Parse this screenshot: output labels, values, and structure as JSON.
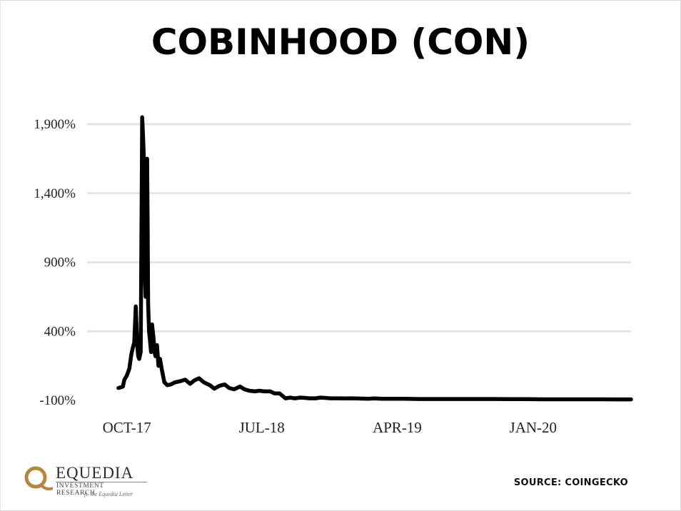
{
  "chart_data": {
    "type": "line",
    "title": "COBINHOOD (CON)",
    "xlabel": "",
    "ylabel": "",
    "x_ticks": [
      "OCT-17",
      "JUL-18",
      "APR-19",
      "JAN-20"
    ],
    "y_ticks": [
      "-100%",
      "400%",
      "900%",
      "1,400%",
      "1,900%"
    ],
    "y_tick_values": [
      -100,
      400,
      900,
      1400,
      1900
    ],
    "ylim": [
      -100,
      2000
    ],
    "grid": true,
    "legend": "none",
    "line_color": "#000000",
    "series": [
      {
        "x": [
          "2017-09-28",
          "2017-10-03",
          "2017-10-07",
          "2017-10-10",
          "2017-10-15",
          "2017-10-20",
          "2017-10-24",
          "2017-10-27",
          "2017-10-30",
          "2017-11-02",
          "2017-11-05",
          "2017-11-07",
          "2017-11-09",
          "2017-11-12",
          "2017-11-15",
          "2017-11-17",
          "2017-11-19",
          "2017-11-20",
          "2017-11-21",
          "2017-11-22",
          "2017-11-23",
          "2017-11-24",
          "2017-11-25",
          "2017-11-26",
          "2017-11-27",
          "2017-11-29",
          "2017-12-01",
          "2017-12-03",
          "2017-12-05",
          "2017-12-08",
          "2017-12-10",
          "2017-12-12",
          "2017-12-15",
          "2017-12-18",
          "2017-12-21",
          "2017-12-25",
          "2017-12-30",
          "2018-01-05",
          "2018-01-12",
          "2018-01-20",
          "2018-02-01",
          "2018-02-10",
          "2018-02-20",
          "2018-03-01",
          "2018-03-10",
          "2018-03-20",
          "2018-04-01",
          "2018-04-10",
          "2018-04-20",
          "2018-05-01",
          "2018-05-10",
          "2018-05-20",
          "2018-06-01",
          "2018-06-10",
          "2018-06-20",
          "2018-07-01",
          "2018-07-10",
          "2018-07-20",
          "2018-08-01",
          "2018-08-10",
          "2018-08-20",
          "2018-09-01",
          "2018-09-10",
          "2018-09-20",
          "2018-10-01",
          "2018-10-10",
          "2018-10-20",
          "2018-11-01",
          "2018-11-10",
          "2018-11-20",
          "2018-12-01",
          "2018-12-15",
          "2019-01-01",
          "2019-01-15",
          "2019-02-01",
          "2019-02-15",
          "2019-03-01",
          "2019-03-15",
          "2019-04-01",
          "2019-05-01",
          "2019-06-01",
          "2019-07-01",
          "2019-08-01",
          "2019-09-01",
          "2019-10-01",
          "2019-11-01",
          "2019-12-01",
          "2020-01-01",
          "2020-02-01",
          "2020-03-01",
          "2020-04-01",
          "2020-05-01",
          "2020-06-01",
          "2020-07-01",
          "2020-08-01",
          "2020-09-01"
        ],
        "values": [
          -10,
          -5,
          0,
          50,
          80,
          130,
          230,
          280,
          320,
          580,
          300,
          220,
          200,
          250,
          1950,
          1800,
          1600,
          1100,
          750,
          650,
          700,
          800,
          1650,
          1200,
          600,
          400,
          330,
          250,
          450,
          350,
          250,
          220,
          300,
          150,
          200,
          120,
          30,
          10,
          15,
          30,
          40,
          50,
          20,
          45,
          60,
          30,
          10,
          -15,
          5,
          15,
          -10,
          -20,
          0,
          -20,
          -30,
          -35,
          -30,
          -35,
          -35,
          -50,
          -50,
          -85,
          -80,
          -85,
          -80,
          -82,
          -85,
          -85,
          -80,
          -82,
          -85,
          -85,
          -86,
          -85,
          -87,
          -88,
          -86,
          -88,
          -88,
          -88,
          -90,
          -90,
          -90,
          -90,
          -90,
          -90,
          -91,
          -91,
          -92,
          -92,
          -92,
          -92,
          -92,
          -93,
          -93,
          -93
        ]
      }
    ]
  },
  "source": "SOURCE:  COINGECKO",
  "logo": {
    "name": "EQUEDIA",
    "sub": "INVESTMENT RESEARCH",
    "tagline": "ft. the Equedia Letter"
  }
}
